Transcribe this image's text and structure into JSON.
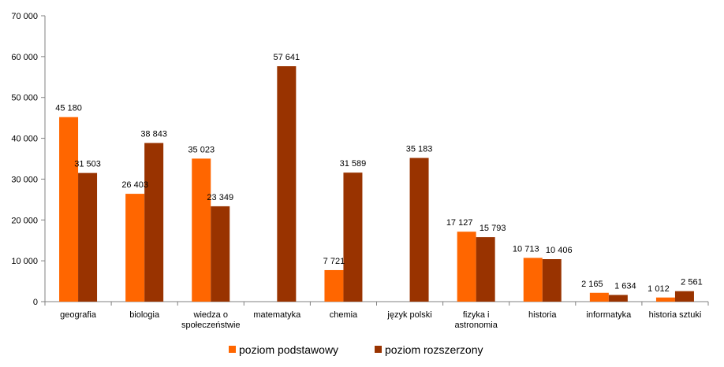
{
  "chart_data": {
    "type": "bar",
    "categories": [
      [
        "geografia"
      ],
      [
        "biologia"
      ],
      [
        "wiedza o",
        "społeczeństwie"
      ],
      [
        "matematyka"
      ],
      [
        "chemia"
      ],
      [
        "język polski"
      ],
      [
        "fizyka i",
        "astronomia"
      ],
      [
        "historia"
      ],
      [
        "informatyka"
      ],
      [
        "historia sztuki"
      ]
    ],
    "series": [
      {
        "name": "poziom podstawowy",
        "color": "#FF6600",
        "values": [
          45180,
          26403,
          35023,
          null,
          7721,
          null,
          17127,
          10713,
          2165,
          1012
        ],
        "labels": [
          "45 180",
          "26 403",
          "35 023",
          "",
          "7 721",
          "",
          "17 127",
          "10 713",
          "2 165",
          "1 012"
        ]
      },
      {
        "name": "poziom rozszerzony",
        "color": "#993300",
        "values": [
          31503,
          38843,
          23349,
          57641,
          31589,
          35183,
          15793,
          10406,
          1634,
          2561
        ],
        "labels": [
          "31 503",
          "38 843",
          "23 349",
          "57 641",
          "31 589",
          "35 183",
          "15 793",
          "10 406",
          "1 634",
          "2 561"
        ]
      }
    ],
    "ylim": [
      0,
      70000
    ],
    "yticks": [
      0,
      10000,
      20000,
      30000,
      40000,
      50000,
      60000,
      70000
    ],
    "ytick_labels": [
      "0",
      "10 000",
      "20 000",
      "30 000",
      "40 000",
      "50 000",
      "60 000",
      "70 000"
    ],
    "grid": false,
    "legend_position": "bottom-center"
  }
}
